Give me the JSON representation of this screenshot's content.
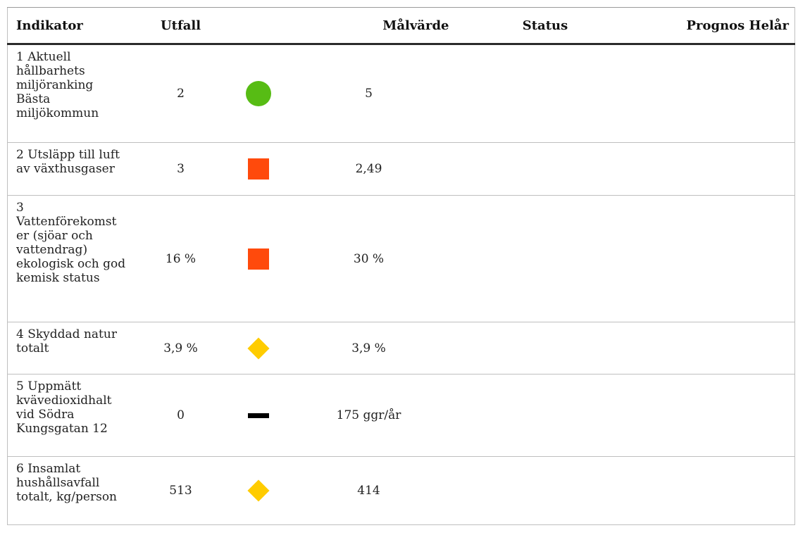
{
  "columns": [
    "Indikator",
    "Utfall",
    "Målvärde",
    "Status",
    "Prognos Helår"
  ],
  "rows": [
    {
      "indicator": "1 Aktuell\nhållbarhets\nmiljöranking\nBästa\nmiljökommun",
      "outcome": "2",
      "target": "5",
      "status": "on-target",
      "status_shape": "circle",
      "status_color": "#57bc14",
      "forecast": ""
    },
    {
      "indicator": "2 Utsläpp till luft\nav växthusgaser",
      "outcome": "3",
      "target": "2,49",
      "status": "off-target",
      "status_shape": "square",
      "status_color": "#ff4a0c",
      "forecast": ""
    },
    {
      "indicator": "3\nVattenförekomst\ner (sjöar och\nvattendrag)\nekologisk och god\nkemisk status",
      "outcome": "16 %",
      "target": "30 %",
      "status": "off-target",
      "status_shape": "square",
      "status_color": "#ff4a0c",
      "forecast": ""
    },
    {
      "indicator": "4 Skyddad natur\ntotalt",
      "outcome": "3,9 %",
      "target": "3,9 %",
      "status": "warning",
      "status_shape": "diamond",
      "status_color": "#ffcc00",
      "forecast": ""
    },
    {
      "indicator": "5 Uppmätt\nkvävedioxidhalt\nvid Södra\nKungsgatan 12",
      "outcome": "0",
      "target": "175 ggr/år",
      "status": "no-status",
      "status_shape": "dash",
      "status_color": "#000000",
      "forecast": ""
    },
    {
      "indicator": "6 Insamlat\nhushållsavfall\ntotalt, kg/person",
      "outcome": "513",
      "target": "414",
      "status": "warning",
      "status_shape": "diamond",
      "status_color": "#ffcc00",
      "forecast": ""
    }
  ]
}
